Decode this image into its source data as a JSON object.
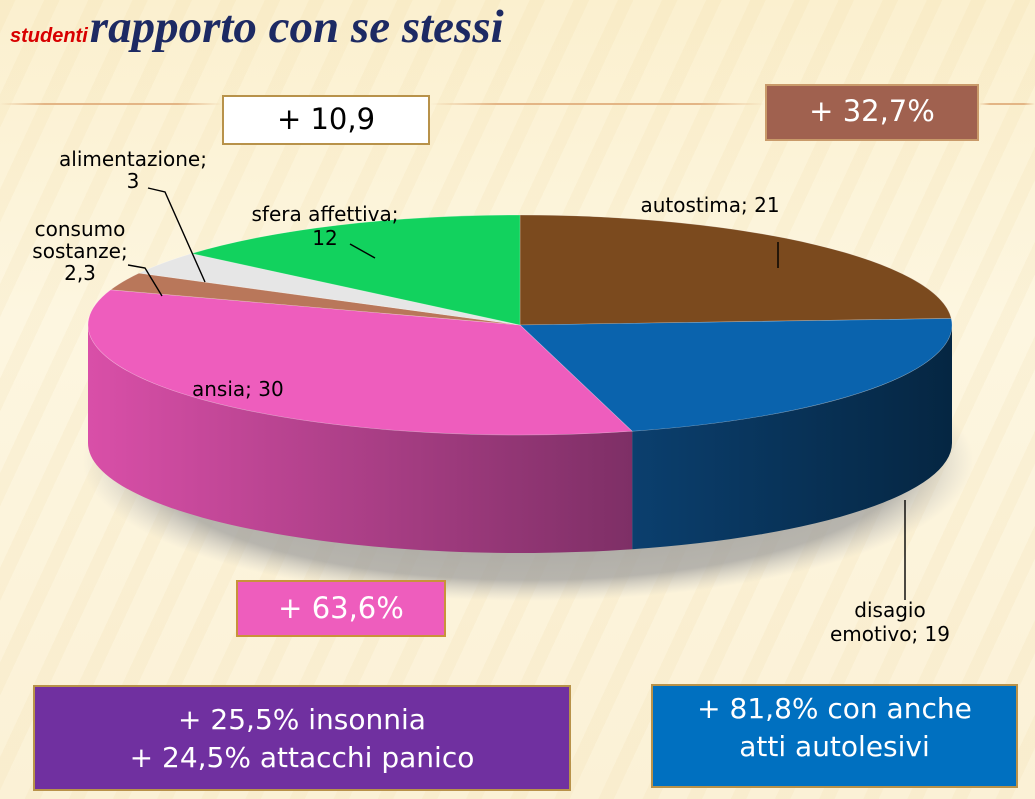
{
  "header": {
    "label_small": "studenti",
    "title": "rapporto con se stessi"
  },
  "callouts": {
    "white": "+ 10,9",
    "brown": "+ 32,7%",
    "pink": "+ 63,6%",
    "purple": [
      "+ 25,5% insonnia",
      "+ 24,5% attacchi panico"
    ],
    "blue": [
      "+ 81,8% con anche",
      "atti autolesivi"
    ]
  },
  "colors": {
    "autostima": "#7b4a1e",
    "disagio": "#0a63ad",
    "ansia": "#ee5dbd",
    "consumo": "#b9775a",
    "alimentazione": "#e6e6e6",
    "sfera": "#12d25e"
  },
  "chart_data": {
    "type": "pie",
    "three_d": true,
    "categories": [
      "autostima",
      "disagio emotivo",
      "ansia",
      "consumo sostanze",
      "alimentazione",
      "sfera affettiva"
    ],
    "values": [
      21,
      19,
      30,
      2.3,
      3,
      12
    ],
    "labels": [
      [
        "autostima; 21"
      ],
      [
        "disagio",
        "emotivo; 19"
      ],
      [
        "ansia; 30"
      ],
      [
        "consumo",
        "sostanze;",
        "2,3"
      ],
      [
        "alimentazione;",
        "3"
      ],
      [
        "sfera affettiva;",
        "12"
      ]
    ]
  }
}
